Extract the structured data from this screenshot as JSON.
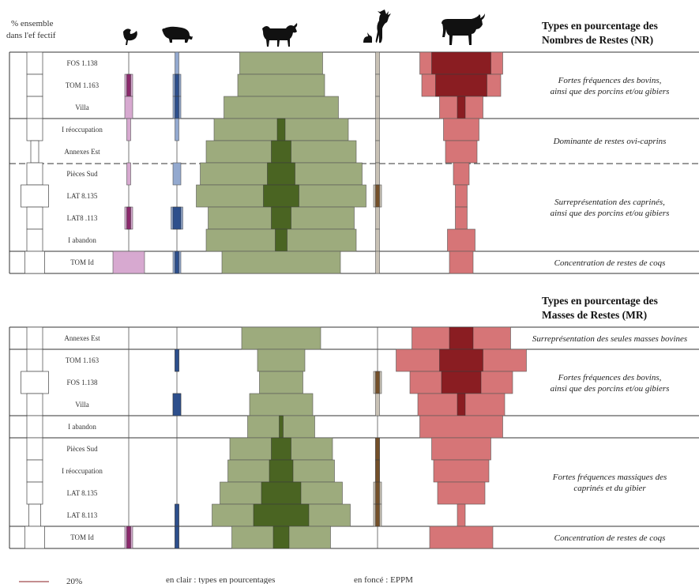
{
  "header": {
    "effectif_label_1": "% ensemble",
    "effectif_label_2": "dans l'ef fectif"
  },
  "panels": [
    {
      "id": "nr",
      "title_1": "Types en pourcentage des",
      "title_2": "Nombres de Restes (NR)"
    },
    {
      "id": "mr",
      "title_1": "Types en pourcentage des",
      "title_2": "Masses de Restes (MR)"
    }
  ],
  "legend": {
    "scale_label": "20%",
    "light_label": "en clair : types en pourcentages",
    "dark_label": "en foncé : EPPM"
  },
  "chart_data": [
    {
      "type": "bar",
      "title": "Types en pourcentage des Nombres de Restes (NR)",
      "species": [
        "coq",
        "porc",
        "ovi-caprins",
        "gibier",
        "bovins"
      ],
      "categories": [
        "FOS 1.138",
        "TOM 1.163",
        "Villa",
        "I réoccupation",
        "Annexes Est",
        "Pièces Sud",
        "LAT 8.135",
        "LAT8 .113",
        "I abandon",
        "TOM Id"
      ],
      "effectif": [
        4,
        4,
        4,
        4,
        2,
        4,
        7,
        4,
        4,
        5
      ],
      "series": [
        {
          "name": "coq",
          "light": [
            0,
            2,
            2,
            1,
            0,
            1,
            0,
            2,
            0,
            8
          ],
          "dark": [
            0,
            1,
            0,
            0,
            0,
            0,
            0,
            1,
            0,
            0
          ]
        },
        {
          "name": "porc",
          "light": [
            1,
            2,
            2,
            1,
            0,
            2,
            0,
            3,
            0,
            2
          ],
          "dark": [
            0,
            1,
            1,
            0,
            0,
            0,
            0,
            2,
            0,
            1
          ]
        },
        {
          "name": "ovi-caprins",
          "light": [
            21,
            22,
            29,
            34,
            38,
            41,
            43,
            37,
            38,
            30
          ],
          "dark": [
            0,
            0,
            0,
            2,
            5,
            7,
            9,
            5,
            3,
            0
          ]
        },
        {
          "name": "gibier",
          "light": [
            1,
            1,
            1,
            1,
            1,
            1,
            2,
            1,
            1,
            1
          ],
          "dark": [
            0,
            0,
            0,
            0,
            0,
            0,
            1,
            0,
            0,
            0
          ]
        },
        {
          "name": "bovins",
          "light": [
            21,
            20,
            11,
            9,
            8,
            4,
            3,
            3,
            7,
            6
          ],
          "dark": [
            15,
            13,
            2,
            0,
            0,
            0,
            0,
            0,
            0,
            0
          ]
        }
      ],
      "annotations": [
        {
          "rows": [
            0,
            2
          ],
          "text_1": "Fortes fréquences des bovins,",
          "text_2": "ainsi que des porcins et/ou gibiers"
        },
        {
          "rows": [
            3,
            4
          ],
          "text_1": "Dominante de restes ovi-caprins",
          "text_2": ""
        },
        {
          "rows": [
            5,
            8
          ],
          "text_1": "Surreprésentation des caprinés,",
          "text_2": "ainsi que des porcins et/ou gibiers"
        },
        {
          "rows": [
            9,
            9
          ],
          "text_1": "Concentration de restes de coqs",
          "text_2": ""
        }
      ]
    },
    {
      "type": "bar",
      "title": "Types en pourcentage des Masses de Restes (MR)",
      "species": [
        "coq",
        "porc",
        "ovi-caprins",
        "gibier",
        "bovins"
      ],
      "categories": [
        "Annexes Est",
        "TOM 1.163",
        "FOS 1.138",
        "Villa",
        "I abandon",
        "Pièces Sud",
        "I réoccupation",
        "LAT 8.135",
        "LAT 8.113",
        "TOM Id"
      ],
      "effectif": [
        4,
        4,
        7,
        4,
        4,
        4,
        4,
        4,
        3,
        5
      ],
      "series": [
        {
          "name": "coq",
          "light": [
            0,
            0,
            0,
            0,
            0,
            0,
            0,
            0,
            0,
            2
          ],
          "dark": [
            0,
            0,
            0,
            0,
            0,
            0,
            0,
            0,
            0,
            1
          ]
        },
        {
          "name": "porc",
          "light": [
            0,
            1,
            0,
            2,
            0,
            0,
            0,
            0,
            1,
            1
          ],
          "dark": [
            0,
            1,
            0,
            2,
            0,
            0,
            0,
            0,
            1,
            1
          ]
        },
        {
          "name": "ovi-caprins",
          "light": [
            20,
            12,
            11,
            16,
            17,
            26,
            27,
            31,
            35,
            25
          ],
          "dark": [
            0,
            0,
            0,
            0,
            1,
            5,
            6,
            10,
            14,
            4
          ]
        },
        {
          "name": "gibier",
          "light": [
            0,
            0,
            2,
            1,
            0,
            1,
            1,
            2,
            2,
            0
          ],
          "dark": [
            0,
            0,
            1,
            0,
            0,
            1,
            1,
            1,
            1,
            0
          ]
        },
        {
          "name": "bovins",
          "light": [
            25,
            33,
            26,
            22,
            21,
            15,
            14,
            12,
            2,
            16
          ],
          "dark": [
            6,
            11,
            10,
            2,
            0,
            0,
            0,
            0,
            0,
            0
          ]
        }
      ],
      "annotations": [
        {
          "rows": [
            0,
            0
          ],
          "text_1": "Surreprésentation des seules masses bovines",
          "text_2": ""
        },
        {
          "rows": [
            1,
            3
          ],
          "text_1": "Fortes fréquences des bovins,",
          "text_2": "ainsi que des porcins et/ou gibiers"
        },
        {
          "rows": [
            4,
            4
          ],
          "text_1": "",
          "text_2": ""
        },
        {
          "rows": [
            5,
            8
          ],
          "text_1": "Fortes fréquences massiques des",
          "text_2": "caprinés et du gibier"
        },
        {
          "rows": [
            9,
            9
          ],
          "text_1": "Concentration de restes de coqs",
          "text_2": ""
        }
      ]
    }
  ],
  "colors": {
    "coq_light": "#d7a9d0",
    "coq_dark": "#8b2a6c",
    "porc_light": "#93a9cf",
    "porc_dark": "#2d4f8c",
    "ovi_light": "#9dab7d",
    "ovi_dark": "#4a6422",
    "gibier_light": "#c9c2b6",
    "gibier_dark": "#74502a",
    "bovins_light": "#d67577",
    "bovins_dark": "#8a1d22",
    "effectif": "#ffffff"
  },
  "icons": [
    "rooster-icon",
    "pig-icon",
    "goats-icon",
    "deer-hare-icon",
    "bull-icon"
  ]
}
